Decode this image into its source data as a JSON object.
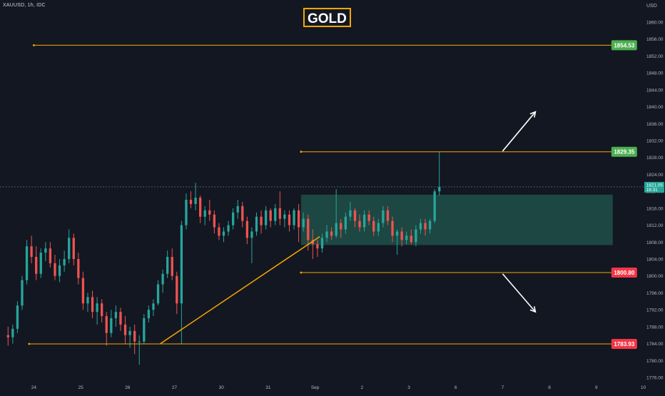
{
  "header": {
    "symbol": "XAUUSD, 1h, IDC",
    "title": "GOLD",
    "currency": "USD"
  },
  "colors": {
    "background": "#131722",
    "up": "#26a69a",
    "down": "#ef5350",
    "line": "#f7a600",
    "zone": "#1d4a44",
    "price_green": "#4caf50",
    "price_red": "#f23645",
    "arrow": "#ffffff"
  },
  "chart_data": {
    "type": "candlestick",
    "title": "GOLD",
    "symbol": "XAUUSD",
    "timeframe": "1h",
    "ylim": [
      1774,
      1866
    ],
    "y_ticks": [
      1776,
      1780,
      1784,
      1788,
      1792,
      1796,
      1800,
      1804,
      1808,
      1812,
      1816,
      1820,
      1824,
      1828,
      1832,
      1836,
      1840,
      1844,
      1848,
      1852,
      1856,
      1860
    ],
    "y_tick_labels": [
      "1776.00",
      "1780.00",
      "1784.00",
      "1788.00",
      "1792.00",
      "1796.00",
      "1800.00",
      "1804.00",
      "1808.00",
      "1812.00",
      "1816.00",
      "1820.00",
      "1824.00",
      "1828.00",
      "1832.00",
      "1836.00",
      "1840.00",
      "1844.00",
      "1848.00",
      "1852.00",
      "1856.00",
      "1860.00"
    ],
    "x_ticks": [
      {
        "label": "24",
        "slot": 6
      },
      {
        "label": "25",
        "slot": 16
      },
      {
        "label": "26",
        "slot": 26
      },
      {
        "label": "27",
        "slot": 36
      },
      {
        "label": "30",
        "slot": 46
      },
      {
        "label": "31",
        "slot": 56
      },
      {
        "label": "Sep",
        "slot": 66
      },
      {
        "label": "2",
        "slot": 76
      },
      {
        "label": "3",
        "slot": 86
      },
      {
        "label": "6",
        "slot": 96
      },
      {
        "label": "7",
        "slot": 106
      },
      {
        "label": "8",
        "slot": 116
      },
      {
        "label": "9",
        "slot": 126
      },
      {
        "label": "10",
        "slot": 136
      }
    ],
    "candles_ohlc": [
      [
        1786.0,
        1788.0,
        1783.5,
        1785.5
      ],
      [
        1785.5,
        1788.5,
        1784.0,
        1787.5
      ],
      [
        1787.5,
        1794.0,
        1786.5,
        1793.0
      ],
      [
        1793.0,
        1800.0,
        1792.0,
        1799.0
      ],
      [
        1799.0,
        1808.5,
        1798.0,
        1807.0
      ],
      [
        1807.0,
        1809.5,
        1803.0,
        1804.5
      ],
      [
        1804.5,
        1807.0,
        1799.0,
        1800.5
      ],
      [
        1800.5,
        1806.5,
        1799.5,
        1805.5
      ],
      [
        1805.5,
        1808.0,
        1803.5,
        1806.5
      ],
      [
        1806.5,
        1808.0,
        1802.0,
        1803.0
      ],
      [
        1803.0,
        1805.0,
        1799.0,
        1800.0
      ],
      [
        1800.0,
        1804.0,
        1798.5,
        1802.5
      ],
      [
        1802.5,
        1806.0,
        1801.0,
        1804.0
      ],
      [
        1804.0,
        1811.0,
        1803.0,
        1809.0
      ],
      [
        1809.0,
        1810.0,
        1802.5,
        1804.0
      ],
      [
        1804.0,
        1805.5,
        1798.0,
        1799.5
      ],
      [
        1799.5,
        1801.0,
        1792.0,
        1793.5
      ],
      [
        1793.5,
        1796.0,
        1791.5,
        1795.0
      ],
      [
        1795.0,
        1796.5,
        1790.0,
        1791.5
      ],
      [
        1791.5,
        1795.0,
        1788.5,
        1793.5
      ],
      [
        1793.5,
        1794.5,
        1789.0,
        1790.5
      ],
      [
        1790.5,
        1791.5,
        1783.5,
        1786.5
      ],
      [
        1786.5,
        1792.0,
        1785.5,
        1790.0
      ],
      [
        1790.0,
        1793.0,
        1788.0,
        1791.5
      ],
      [
        1791.5,
        1792.5,
        1787.0,
        1788.5
      ],
      [
        1788.5,
        1790.5,
        1784.0,
        1786.0
      ],
      [
        1786.0,
        1788.0,
        1783.0,
        1787.0
      ],
      [
        1787.0,
        1788.5,
        1781.5,
        1784.5
      ],
      [
        1784.5,
        1786.0,
        1779.0,
        1784.5
      ],
      [
        1784.5,
        1791.0,
        1784.0,
        1790.0
      ],
      [
        1790.0,
        1793.0,
        1789.0,
        1792.0
      ],
      [
        1792.0,
        1794.5,
        1790.5,
        1793.5
      ],
      [
        1793.5,
        1799.0,
        1793.0,
        1798.0
      ],
      [
        1798.0,
        1801.5,
        1796.0,
        1800.5
      ],
      [
        1800.5,
        1806.0,
        1799.5,
        1804.5
      ],
      [
        1804.5,
        1806.5,
        1799.0,
        1800.0
      ],
      [
        1800.0,
        1801.0,
        1791.0,
        1793.5
      ],
      [
        1793.5,
        1813.0,
        1784.0,
        1812.0
      ],
      [
        1812.0,
        1819.5,
        1811.0,
        1818.0
      ],
      [
        1818.0,
        1820.0,
        1816.0,
        1817.0
      ],
      [
        1817.0,
        1822.0,
        1815.5,
        1818.5
      ],
      [
        1818.5,
        1819.0,
        1812.5,
        1814.0
      ],
      [
        1814.0,
        1816.5,
        1812.0,
        1815.5
      ],
      [
        1815.5,
        1818.0,
        1813.0,
        1814.5
      ],
      [
        1814.5,
        1815.5,
        1810.0,
        1811.5
      ],
      [
        1811.5,
        1812.5,
        1808.5,
        1809.5
      ],
      [
        1809.5,
        1811.5,
        1808.0,
        1810.5
      ],
      [
        1810.5,
        1813.0,
        1809.5,
        1812.0
      ],
      [
        1812.0,
        1816.0,
        1811.0,
        1815.0
      ],
      [
        1815.0,
        1818.0,
        1813.5,
        1816.5
      ],
      [
        1816.5,
        1817.5,
        1811.5,
        1813.0
      ],
      [
        1813.0,
        1814.0,
        1807.5,
        1809.0
      ],
      [
        1809.0,
        1811.5,
        1803.0,
        1810.5
      ],
      [
        1810.5,
        1815.0,
        1809.5,
        1814.0
      ],
      [
        1814.0,
        1815.5,
        1810.0,
        1812.0
      ],
      [
        1812.0,
        1816.5,
        1811.0,
        1815.5
      ],
      [
        1815.5,
        1816.0,
        1811.5,
        1813.0
      ],
      [
        1813.0,
        1817.0,
        1812.0,
        1816.0
      ],
      [
        1816.0,
        1820.0,
        1812.0,
        1813.5
      ],
      [
        1813.5,
        1815.5,
        1811.5,
        1814.5
      ],
      [
        1814.5,
        1815.5,
        1810.5,
        1812.0
      ],
      [
        1812.0,
        1816.0,
        1811.0,
        1815.5
      ],
      [
        1815.5,
        1817.0,
        1808.0,
        1811.5
      ],
      [
        1811.5,
        1815.0,
        1810.5,
        1813.5
      ],
      [
        1813.5,
        1814.5,
        1806.0,
        1808.5
      ],
      [
        1808.5,
        1811.0,
        1804.0,
        1807.5
      ],
      [
        1807.5,
        1808.5,
        1804.5,
        1806.5
      ],
      [
        1806.5,
        1810.0,
        1805.5,
        1809.0
      ],
      [
        1809.0,
        1812.0,
        1808.0,
        1810.5
      ],
      [
        1810.5,
        1811.5,
        1808.5,
        1809.5
      ],
      [
        1809.5,
        1820.5,
        1809.0,
        1812.5
      ],
      [
        1812.5,
        1813.5,
        1809.0,
        1811.0
      ],
      [
        1811.0,
        1815.0,
        1810.0,
        1814.0
      ],
      [
        1814.0,
        1817.5,
        1813.0,
        1815.5
      ],
      [
        1815.5,
        1816.0,
        1811.5,
        1813.0
      ],
      [
        1813.0,
        1814.5,
        1810.5,
        1811.5
      ],
      [
        1811.5,
        1815.5,
        1810.5,
        1814.5
      ],
      [
        1814.5,
        1815.5,
        1812.0,
        1813.0
      ],
      [
        1813.0,
        1814.0,
        1809.5,
        1810.5
      ],
      [
        1810.5,
        1813.5,
        1809.5,
        1812.5
      ],
      [
        1812.5,
        1816.5,
        1811.5,
        1815.5
      ],
      [
        1815.5,
        1816.5,
        1812.0,
        1813.0
      ],
      [
        1813.0,
        1814.0,
        1808.0,
        1809.5
      ],
      [
        1809.5,
        1811.0,
        1805.0,
        1810.5
      ],
      [
        1810.5,
        1811.5,
        1807.0,
        1808.5
      ],
      [
        1808.5,
        1810.5,
        1807.5,
        1809.5
      ],
      [
        1809.5,
        1811.0,
        1807.5,
        1808.0
      ],
      [
        1808.0,
        1812.0,
        1807.0,
        1811.0
      ],
      [
        1811.0,
        1813.5,
        1810.0,
        1812.5
      ],
      [
        1812.5,
        1813.5,
        1809.5,
        1811.0
      ],
      [
        1811.0,
        1813.5,
        1810.0,
        1813.0
      ],
      [
        1813.0,
        1820.5,
        1812.5,
        1820.0
      ],
      [
        1820.0,
        1829.3,
        1819.0,
        1821.0
      ]
    ],
    "horizontal_levels": [
      {
        "price": 1854.53,
        "label": "1854.53",
        "color": "green"
      },
      {
        "price": 1829.35,
        "label": "1829.35",
        "color": "green"
      },
      {
        "price": 1800.8,
        "label": "1800.80",
        "color": "red"
      },
      {
        "price": 1783.93,
        "label": "1783.93",
        "color": "red"
      }
    ],
    "level_anchors": [
      {
        "price": 1854.53,
        "start_slot": 6
      },
      {
        "price": 1829.35,
        "start_slot": 63
      },
      {
        "price": 1800.8,
        "start_slot": 63
      },
      {
        "price": 1783.93,
        "start_slot": 5
      }
    ],
    "zone": {
      "top": 1819.2,
      "bottom": 1807.3,
      "start_slot": 63,
      "end_slot": 129.5
    },
    "trendline": {
      "from": {
        "slot": 33,
        "price": 1784.0
      },
      "to": {
        "slot": 67,
        "price": 1809.3
      }
    },
    "arrows": [
      {
        "direction": "up",
        "from": {
          "slot": 106,
          "price": 1829.5
        },
        "to": {
          "slot": 113,
          "price": 1838.8
        }
      },
      {
        "direction": "down",
        "from": {
          "slot": 106,
          "price": 1800.5
        },
        "to": {
          "slot": 113,
          "price": 1791.5
        }
      }
    ],
    "current_price": {
      "value": 1821.05,
      "label": "1821.05",
      "timer": "18:31"
    }
  }
}
